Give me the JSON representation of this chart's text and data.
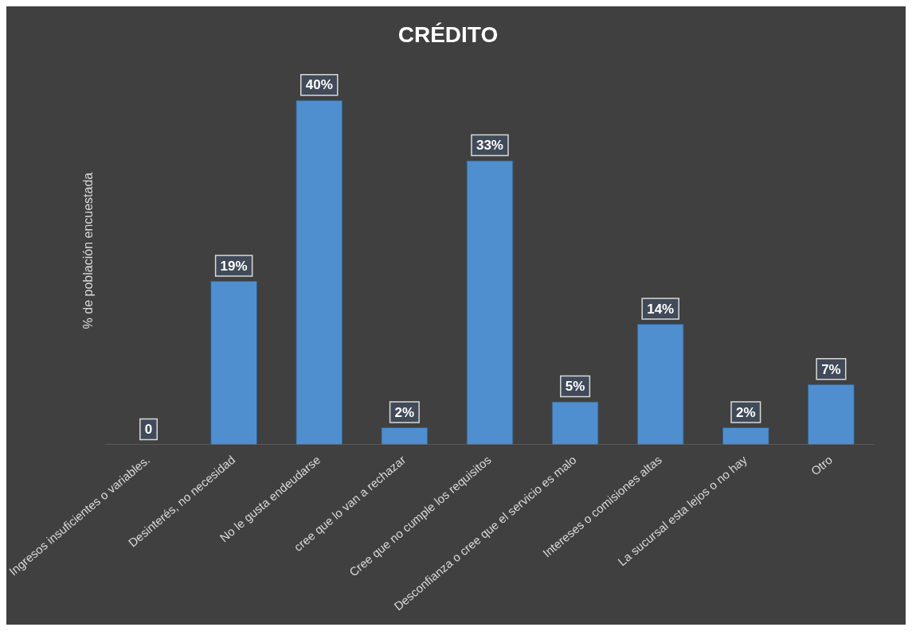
{
  "chart_data": {
    "type": "bar",
    "title": "CRÉDITO",
    "ylabel": "% de población encuestada",
    "categories": [
      "Ingresos insuficientes o variables.",
      "Desinterés, no necesidad",
      "No le gusta endeudarse",
      "cree que lo van a rechazar",
      "Cree que no cumple los requisitos",
      "Desconfianza o cree que el servicio es malo",
      "Intereses o comisiones altas",
      "La sucursal esta lejos o no hay",
      "Otro"
    ],
    "values": [
      0,
      19,
      40,
      2,
      33,
      5,
      14,
      2,
      7
    ],
    "value_labels": [
      "0",
      "19%",
      "40%",
      "2%",
      "33%",
      "5%",
      "14%",
      "2%",
      "7%"
    ],
    "color": "#4f8fcf",
    "grid": false,
    "legend": false
  }
}
